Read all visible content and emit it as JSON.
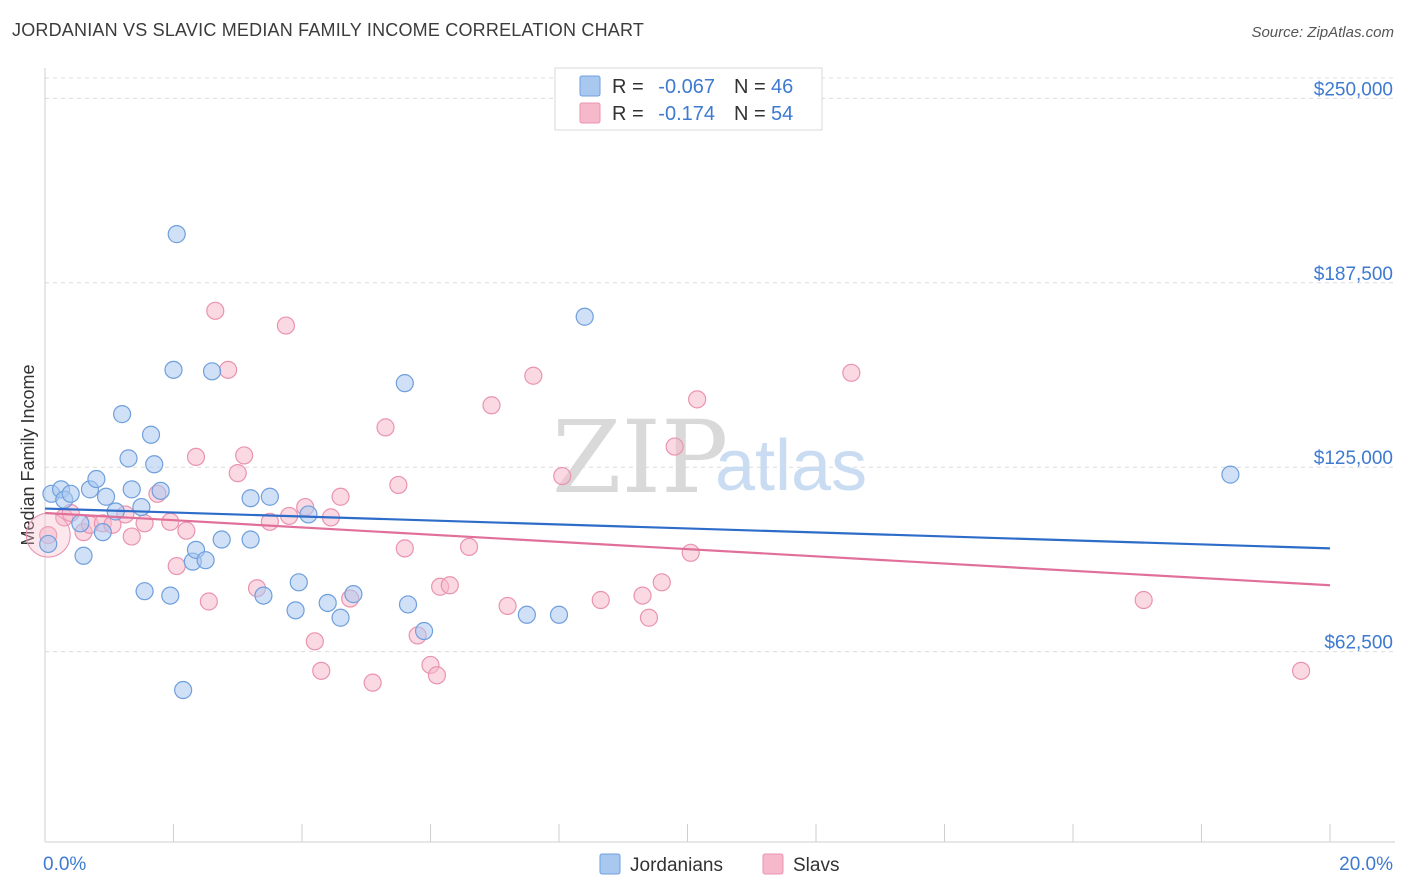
{
  "title": "JORDANIAN VS SLAVIC MEDIAN FAMILY INCOME CORRELATION CHART",
  "source": "Source: ZipAtlas.com",
  "watermark": {
    "zip": "ZIP",
    "atlas": "atlas"
  },
  "legend_top": {
    "rows": [
      {
        "r_label": "R =",
        "r_value": "-0.067",
        "n_label": "N =",
        "n_value": "46"
      },
      {
        "r_label": "R =",
        "r_value": "-0.174",
        "n_label": "N =",
        "n_value": "54"
      }
    ]
  },
  "legend_bottom": [
    "Jordanians",
    "Slavs"
  ],
  "colors": {
    "jordanians_fill": "#a9c8f0",
    "jordanians_stroke": "#6f9fdc",
    "jordanians_line": "#2e6cc9",
    "slavs_fill": "#f6b9cc",
    "slavs_stroke": "#ea93b0",
    "slavs_line": "#e0709a",
    "axis_text": "#3d7ad0",
    "grid": "#dcdcdc"
  },
  "chart_data": {
    "type": "scatter",
    "title": "JORDANIAN VS SLAVIC MEDIAN FAMILY INCOME CORRELATION CHART",
    "xlabel": "",
    "ylabel": "Median Family Income",
    "xlim": [
      0,
      20
    ],
    "ylim": [
      -2000,
      263000
    ],
    "x_tick_labels": [
      "0.0%",
      "20.0%"
    ],
    "y_ticks": [
      62500,
      125000,
      187500,
      250000
    ],
    "y_tick_labels": [
      "$62,500",
      "$125,000",
      "$187,500",
      "$250,000"
    ],
    "grid": true,
    "legend_position": "top-center",
    "series": [
      {
        "name": "Jordanians",
        "r": -0.067,
        "n": 46,
        "trend": [
          [
            0,
            111000
          ],
          [
            20,
            97500
          ]
        ],
        "points": [
          [
            0.05,
            99000
          ],
          [
            0.1,
            116000
          ],
          [
            0.25,
            117500
          ],
          [
            0.3,
            114000
          ],
          [
            0.4,
            116000
          ],
          [
            0.55,
            106000
          ],
          [
            0.6,
            95000
          ],
          [
            0.7,
            117500
          ],
          [
            0.8,
            121000
          ],
          [
            0.9,
            103000
          ],
          [
            0.95,
            115000
          ],
          [
            1.1,
            110000
          ],
          [
            1.2,
            143000
          ],
          [
            1.3,
            128000
          ],
          [
            1.35,
            117500
          ],
          [
            1.5,
            111500
          ],
          [
            1.55,
            83000
          ],
          [
            1.65,
            136000
          ],
          [
            1.7,
            126000
          ],
          [
            1.8,
            117000
          ],
          [
            1.95,
            81500
          ],
          [
            2.0,
            158000
          ],
          [
            2.05,
            204000
          ],
          [
            2.15,
            49500
          ],
          [
            2.3,
            93000
          ],
          [
            2.35,
            97000
          ],
          [
            2.5,
            93500
          ],
          [
            2.6,
            157500
          ],
          [
            2.75,
            100500
          ],
          [
            3.2,
            100500
          ],
          [
            3.2,
            114500
          ],
          [
            3.4,
            81500
          ],
          [
            3.5,
            115000
          ],
          [
            3.9,
            76500
          ],
          [
            3.95,
            86000
          ],
          [
            4.1,
            109000
          ],
          [
            4.4,
            79000
          ],
          [
            4.6,
            74000
          ],
          [
            4.8,
            82000
          ],
          [
            5.6,
            153500
          ],
          [
            5.65,
            78500
          ],
          [
            5.9,
            69500
          ],
          [
            7.5,
            75000
          ],
          [
            8.0,
            75000
          ],
          [
            8.4,
            176000
          ],
          [
            18.45,
            122500
          ]
        ]
      },
      {
        "name": "Slavs",
        "r": -0.174,
        "n": 54,
        "trend": [
          [
            0,
            109500
          ],
          [
            20,
            85000
          ]
        ],
        "points": [
          [
            0.05,
            102000
          ],
          [
            0.3,
            108000
          ],
          [
            0.4,
            109500
          ],
          [
            0.6,
            103000
          ],
          [
            0.7,
            105500
          ],
          [
            0.9,
            106000
          ],
          [
            1.05,
            105500
          ],
          [
            1.25,
            109000
          ],
          [
            1.35,
            101500
          ],
          [
            1.55,
            106000
          ],
          [
            1.75,
            116000
          ],
          [
            1.95,
            106500
          ],
          [
            2.05,
            91500
          ],
          [
            2.2,
            103500
          ],
          [
            2.35,
            128500
          ],
          [
            2.55,
            79500
          ],
          [
            2.65,
            178000
          ],
          [
            2.85,
            158000
          ],
          [
            3.0,
            123000
          ],
          [
            3.1,
            129000
          ],
          [
            3.3,
            84000
          ],
          [
            3.5,
            106500
          ],
          [
            3.75,
            173000
          ],
          [
            3.8,
            108500
          ],
          [
            4.05,
            111500
          ],
          [
            4.2,
            66000
          ],
          [
            4.3,
            56000
          ],
          [
            4.45,
            108000
          ],
          [
            4.6,
            115000
          ],
          [
            4.75,
            80500
          ],
          [
            5.1,
            52000
          ],
          [
            5.3,
            138500
          ],
          [
            5.5,
            119000
          ],
          [
            5.6,
            97500
          ],
          [
            5.8,
            68000
          ],
          [
            6.0,
            58000
          ],
          [
            6.1,
            54500
          ],
          [
            6.15,
            84500
          ],
          [
            6.3,
            85000
          ],
          [
            6.6,
            98000
          ],
          [
            6.95,
            146000
          ],
          [
            7.2,
            78000
          ],
          [
            7.6,
            156000
          ],
          [
            8.05,
            122000
          ],
          [
            8.65,
            80000
          ],
          [
            9.3,
            81500
          ],
          [
            9.4,
            74000
          ],
          [
            9.6,
            86000
          ],
          [
            9.8,
            132000
          ],
          [
            10.05,
            96000
          ],
          [
            10.15,
            148000
          ],
          [
            12.55,
            157000
          ],
          [
            17.1,
            80000
          ],
          [
            19.55,
            56000
          ]
        ]
      }
    ]
  }
}
